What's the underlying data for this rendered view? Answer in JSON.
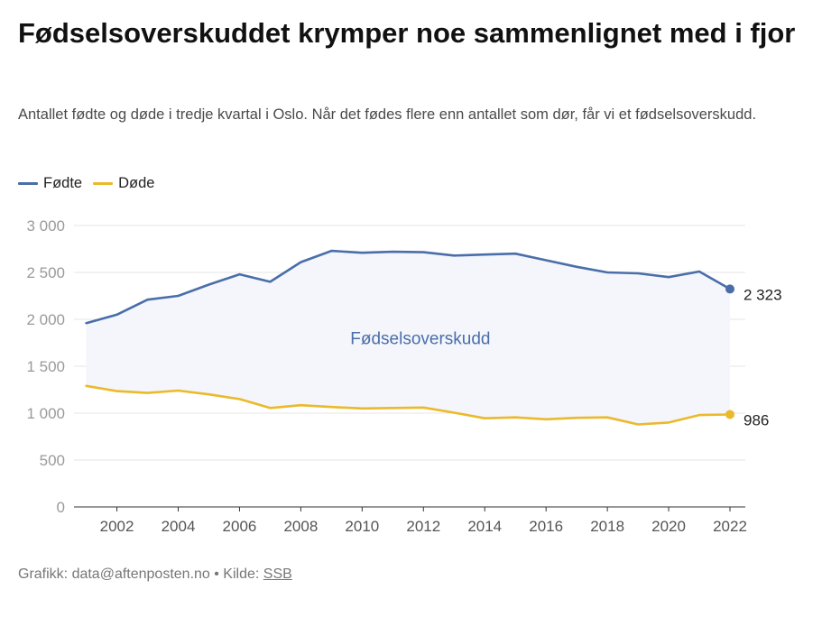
{
  "title": "Fødselsoverskuddet krymper noe sammenlignet med i fjor",
  "subtitle": "Antallet fødte og døde i tredje kvartal i Oslo. Når det fødes flere enn antallet som dør, får vi et fødselsoverskudd.",
  "legend": [
    {
      "label": "Fødte",
      "color": "#4a6ea9"
    },
    {
      "label": "Døde",
      "color": "#ebb92b"
    }
  ],
  "annotation": "Fødselsoverskudd",
  "footer": {
    "credit_prefix": "Grafikk: data@aftenposten.no • Kilde: ",
    "source": "SSB"
  },
  "chart_data": {
    "type": "line",
    "x": [
      2001,
      2002,
      2003,
      2004,
      2005,
      2006,
      2007,
      2008,
      2009,
      2010,
      2011,
      2012,
      2013,
      2014,
      2015,
      2016,
      2017,
      2018,
      2019,
      2020,
      2021,
      2022
    ],
    "series": [
      {
        "name": "Fødte",
        "color": "#4a6ea9",
        "end_label": "2 323",
        "values": [
          1960,
          2050,
          2210,
          2250,
          2370,
          2480,
          2400,
          2610,
          2730,
          2710,
          2720,
          2715,
          2680,
          2690,
          2700,
          2630,
          2560,
          2500,
          2490,
          2450,
          2510,
          2323
        ]
      },
      {
        "name": "Døde",
        "color": "#ebb92b",
        "end_label": "986",
        "values": [
          1290,
          1235,
          1215,
          1240,
          1200,
          1150,
          1055,
          1085,
          1065,
          1050,
          1055,
          1060,
          1005,
          945,
          955,
          935,
          950,
          955,
          880,
          900,
          980,
          986
        ]
      }
    ],
    "yticks": [
      "3 000",
      "2 500",
      "2 000",
      "1 500",
      "1 000",
      "500",
      "0"
    ],
    "ytick_values": [
      3000,
      2500,
      2000,
      1500,
      1000,
      500,
      0
    ],
    "xticks": [
      "2002",
      "2004",
      "2006",
      "2008",
      "2010",
      "2012",
      "2014",
      "2016",
      "2018",
      "2020",
      "2022"
    ],
    "xtick_values": [
      2002,
      2004,
      2006,
      2008,
      2010,
      2012,
      2014,
      2016,
      2018,
      2020,
      2022
    ],
    "xlim": [
      2000.6,
      2022.5
    ],
    "ylim": [
      0,
      3000
    ],
    "grid": true,
    "fill_between": true,
    "fill_color": "#f4f6fb",
    "grid_color": "#e4e4e4",
    "tick_color": "#9a9a9a",
    "axis_color": "#333333"
  }
}
